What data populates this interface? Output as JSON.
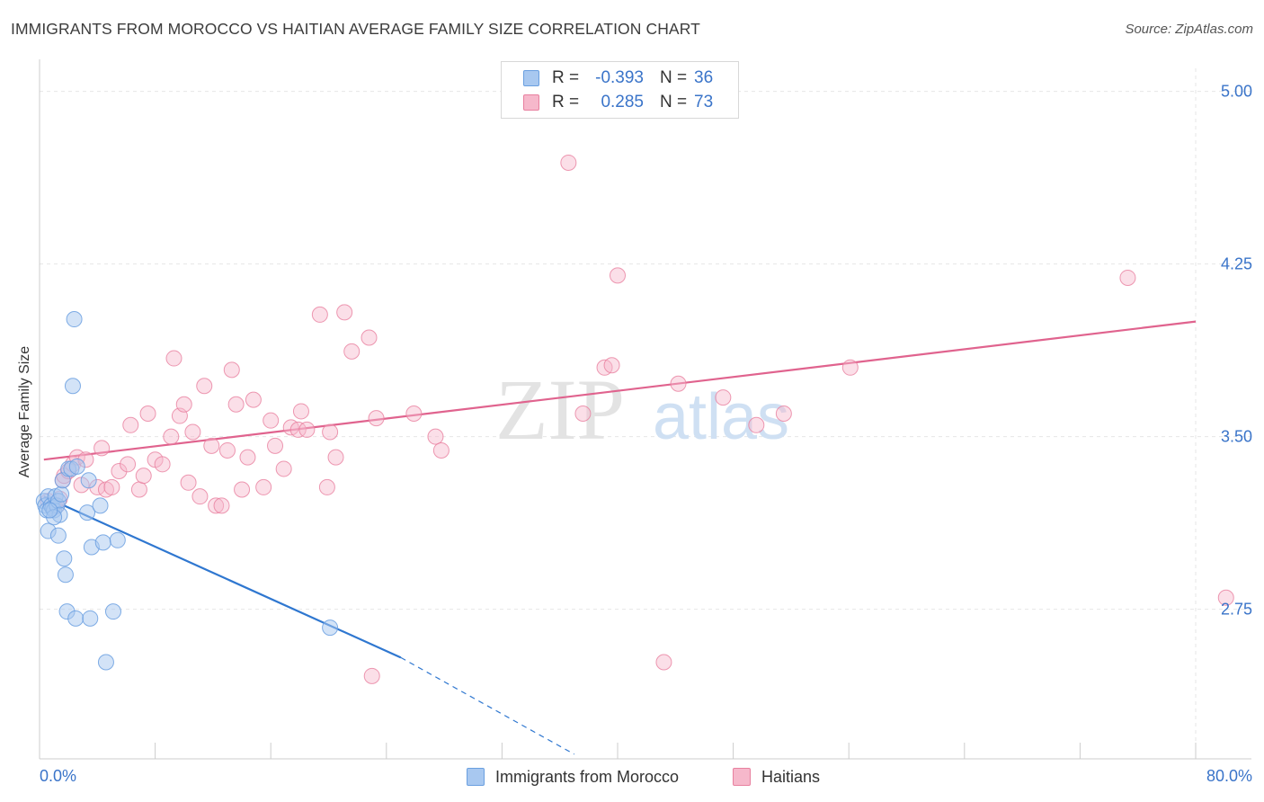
{
  "title": "IMMIGRANTS FROM MOROCCO VS HAITIAN AVERAGE FAMILY SIZE CORRELATION CHART",
  "source": "Source: ZipAtlas.com",
  "watermark": {
    "zip": "ZIP",
    "atlas": "atlas"
  },
  "colors": {
    "blue": "#a8c8f0",
    "blue_stroke": "#6a9fe0",
    "blue_line": "#2f77d0",
    "pink": "#f6b8cb",
    "pink_stroke": "#e8809f",
    "pink_line": "#e0638e",
    "axis_text": "#3a74c9",
    "grid": "#e6e6e6"
  },
  "legend": {
    "rows": [
      {
        "r_label": "R =",
        "r_value": "-0.393",
        "n_label": "N =",
        "n_value": "36"
      },
      {
        "r_label": "R =",
        "r_value": "0.285",
        "n_label": "N =",
        "n_value": "73"
      }
    ]
  },
  "bottom_legend": {
    "blue": "Immigrants from Morocco",
    "pink": "Haitians"
  },
  "chart_data": {
    "type": "scatter",
    "xlabel": "",
    "ylabel": "Average Family Size",
    "xlim": [
      0,
      80
    ],
    "ylim": [
      2.1,
      5.1
    ],
    "x_tick_labels": [
      "0.0%",
      "80.0%"
    ],
    "y_ticks": [
      2.75,
      3.5,
      4.25,
      5.0
    ],
    "y_tick_labels": [
      "2.75",
      "3.50",
      "4.25",
      "5.00"
    ],
    "grid": true,
    "series": [
      {
        "name": "Immigrants from Morocco",
        "trend": {
          "x0": 0.3,
          "y0": 3.24,
          "x1": 25,
          "y1": 2.54,
          "dash_to_x": 37,
          "dash_to_y": 2.12
        },
        "points": [
          [
            0.3,
            3.22
          ],
          [
            0.4,
            3.2
          ],
          [
            0.5,
            3.18
          ],
          [
            0.6,
            3.24
          ],
          [
            0.8,
            3.2
          ],
          [
            0.9,
            3.19
          ],
          [
            1.0,
            3.18
          ],
          [
            1.1,
            3.24
          ],
          [
            1.2,
            3.2
          ],
          [
            1.3,
            3.22
          ],
          [
            0.6,
            3.09
          ],
          [
            1.3,
            3.07
          ],
          [
            1.4,
            3.16
          ],
          [
            1.5,
            3.25
          ],
          [
            1.6,
            3.31
          ],
          [
            1.7,
            2.97
          ],
          [
            1.8,
            2.9
          ],
          [
            1.9,
            2.74
          ],
          [
            2.0,
            3.36
          ],
          [
            2.2,
            3.36
          ],
          [
            2.3,
            3.72
          ],
          [
            2.4,
            4.01
          ],
          [
            2.5,
            2.71
          ],
          [
            2.6,
            3.37
          ],
          [
            3.3,
            3.17
          ],
          [
            3.4,
            3.31
          ],
          [
            3.5,
            2.71
          ],
          [
            3.6,
            3.02
          ],
          [
            4.2,
            3.2
          ],
          [
            4.4,
            3.04
          ],
          [
            4.6,
            2.52
          ],
          [
            5.1,
            2.74
          ],
          [
            5.4,
            3.05
          ],
          [
            20.1,
            2.67
          ],
          [
            1.0,
            3.15
          ],
          [
            0.7,
            3.18
          ]
        ]
      },
      {
        "name": "Haitians",
        "trend": {
          "x0": 0.3,
          "y0": 3.4,
          "x1": 80,
          "y1": 4.0
        },
        "points": [
          [
            0.6,
            3.22
          ],
          [
            1.0,
            3.2
          ],
          [
            1.2,
            3.2
          ],
          [
            1.4,
            3.23
          ],
          [
            1.6,
            3.31
          ],
          [
            1.7,
            3.33
          ],
          [
            2.0,
            3.35
          ],
          [
            2.3,
            3.38
          ],
          [
            2.6,
            3.41
          ],
          [
            2.9,
            3.29
          ],
          [
            3.2,
            3.4
          ],
          [
            4.0,
            3.28
          ],
          [
            4.3,
            3.45
          ],
          [
            4.6,
            3.27
          ],
          [
            5.0,
            3.28
          ],
          [
            5.5,
            3.35
          ],
          [
            6.1,
            3.38
          ],
          [
            6.3,
            3.55
          ],
          [
            6.9,
            3.27
          ],
          [
            7.2,
            3.33
          ],
          [
            7.5,
            3.6
          ],
          [
            8.0,
            3.4
          ],
          [
            8.5,
            3.38
          ],
          [
            9.1,
            3.5
          ],
          [
            9.3,
            3.84
          ],
          [
            9.7,
            3.59
          ],
          [
            10.0,
            3.64
          ],
          [
            10.3,
            3.3
          ],
          [
            10.6,
            3.52
          ],
          [
            11.1,
            3.24
          ],
          [
            11.4,
            3.72
          ],
          [
            11.9,
            3.46
          ],
          [
            12.2,
            3.2
          ],
          [
            12.6,
            3.2
          ],
          [
            13.0,
            3.44
          ],
          [
            13.3,
            3.79
          ],
          [
            13.6,
            3.64
          ],
          [
            14.0,
            3.27
          ],
          [
            14.4,
            3.41
          ],
          [
            14.8,
            3.66
          ],
          [
            15.5,
            3.28
          ],
          [
            16.0,
            3.57
          ],
          [
            16.3,
            3.46
          ],
          [
            16.9,
            3.36
          ],
          [
            17.4,
            3.54
          ],
          [
            17.9,
            3.53
          ],
          [
            18.1,
            3.61
          ],
          [
            18.5,
            3.53
          ],
          [
            19.4,
            4.03
          ],
          [
            19.9,
            3.28
          ],
          [
            20.1,
            3.52
          ],
          [
            20.5,
            3.41
          ],
          [
            21.1,
            4.04
          ],
          [
            21.6,
            3.87
          ],
          [
            22.8,
            3.93
          ],
          [
            23.3,
            3.58
          ],
          [
            25.9,
            3.6
          ],
          [
            27.4,
            3.5
          ],
          [
            27.8,
            3.44
          ],
          [
            36.6,
            4.69
          ],
          [
            37.6,
            3.6
          ],
          [
            39.1,
            3.8
          ],
          [
            39.6,
            3.81
          ],
          [
            40.0,
            4.2
          ],
          [
            43.2,
            2.52
          ],
          [
            44.2,
            3.73
          ],
          [
            47.3,
            3.67
          ],
          [
            49.6,
            3.55
          ],
          [
            51.5,
            3.6
          ],
          [
            56.1,
            3.8
          ],
          [
            75.3,
            4.19
          ],
          [
            82.1,
            2.8
          ],
          [
            23.0,
            2.46
          ]
        ]
      }
    ]
  }
}
